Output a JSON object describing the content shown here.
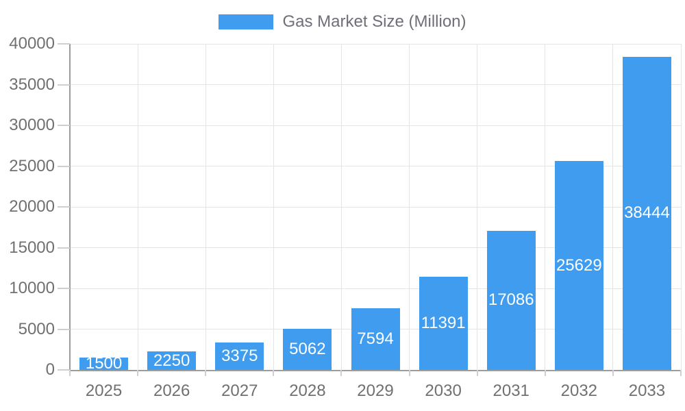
{
  "legend": {
    "label": "Gas Market Size (Million)"
  },
  "colors": {
    "bar": "#3F9CEE",
    "grid": "#E4E4E4",
    "tick": "#CFCFCF",
    "axis_line": "#9C9C9C",
    "axis_label": "#707070",
    "legend_text": "#6E7079",
    "value_label": "#FFFFFF",
    "background": "#FFFFFF"
  },
  "chart_data": {
    "type": "bar",
    "title": "Gas Market Size (Million)",
    "series_name": "Gas Market Size (Million)",
    "categories": [
      "2025",
      "2026",
      "2027",
      "2028",
      "2029",
      "2030",
      "2031",
      "2032",
      "2033"
    ],
    "values": [
      1500,
      2250,
      3375,
      5062,
      7594,
      11391,
      17086,
      25629,
      38444
    ],
    "value_labels": [
      "1500",
      "2250",
      "3375",
      "5062",
      "7594",
      "11391",
      "17086",
      "25629",
      "38444"
    ],
    "xlabel": "",
    "ylabel": "",
    "ylim": [
      0,
      40000
    ],
    "yticks": [
      0,
      5000,
      10000,
      15000,
      20000,
      25000,
      30000,
      35000,
      40000
    ],
    "grid": true,
    "legend_position": "top",
    "value_label_position": "inside-center"
  }
}
